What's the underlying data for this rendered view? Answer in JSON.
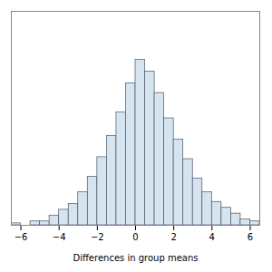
{
  "chart_data": {
    "type": "histogram",
    "xlabel": "Differences in group means",
    "bins": [
      -6.5,
      -6.0,
      -5.5,
      -5.0,
      -4.5,
      -4.0,
      -3.5,
      -3.0,
      -2.5,
      -2.0,
      -1.5,
      -1.0,
      -0.5,
      0.0,
      0.5,
      1.0,
      1.5,
      2.0,
      2.5,
      3.0,
      3.5,
      4.0,
      4.5,
      5.0,
      5.5,
      6.0,
      6.5
    ],
    "values": [
      1,
      0,
      2,
      2,
      5,
      8,
      11,
      17,
      25,
      35,
      46,
      58,
      73,
      85,
      79,
      68,
      55,
      44,
      34,
      24,
      17,
      12,
      9,
      6,
      3,
      2
    ],
    "color": "#d6e4f0",
    "xlim": [
      -6.5,
      6.5
    ],
    "xticks": [
      -6,
      -4,
      -2,
      0,
      2,
      4,
      6
    ],
    "ylim": [
      0,
      110
    ],
    "tick_labels": "x",
    "grid": false
  }
}
